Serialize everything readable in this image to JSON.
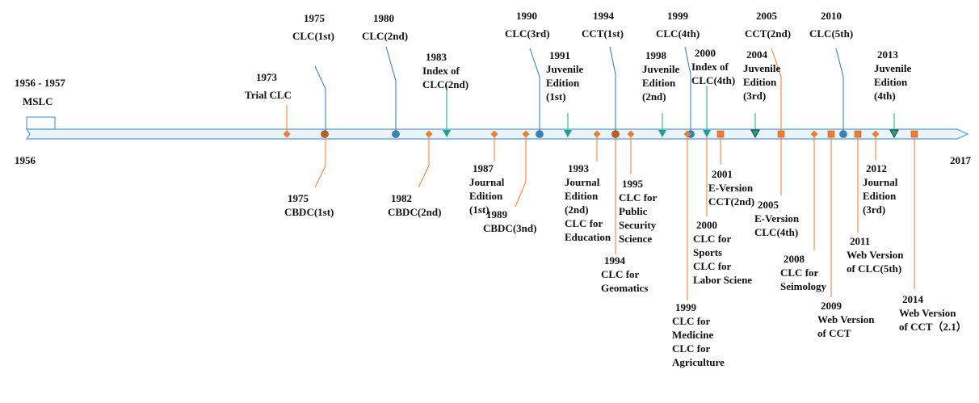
{
  "timeline": {
    "start_label": "1956",
    "end_label": "2017",
    "period_label": "1956 - 1957",
    "colors": {
      "axis": "#5b9bd5",
      "orange": "#ed7d31",
      "blue": "#2e86c1",
      "teal": "#1aa58f",
      "brown": "#c55a11",
      "line_blue": "#2e75b6"
    }
  },
  "events": [
    {
      "id": "mslc",
      "year": "",
      "lines": [
        "MSLC"
      ],
      "pos": "above",
      "marker": "box",
      "color": "axis"
    },
    {
      "id": "trial-clc",
      "year": "1973",
      "lines": [
        "Trial CLC"
      ],
      "pos": "above",
      "marker": "diamond",
      "color": "orange"
    },
    {
      "id": "clc-1st",
      "year": "1975",
      "lines": [
        "CLC(1st)"
      ],
      "pos": "above",
      "marker": "circle",
      "color": "brown"
    },
    {
      "id": "cbdc-1st",
      "year": "1975",
      "lines": [
        "CBDC(1st)"
      ],
      "pos": "below",
      "marker": "none",
      "color": "brown"
    },
    {
      "id": "clc-2nd",
      "year": "1980",
      "lines": [
        "CLC(2nd)"
      ],
      "pos": "above",
      "marker": "circle",
      "color": "blue"
    },
    {
      "id": "index-clc-2nd",
      "year": "1983",
      "lines": [
        "Index of",
        "CLC(2nd)"
      ],
      "pos": "above",
      "marker": "triangle",
      "color": "teal"
    },
    {
      "id": "cbdc-2nd",
      "year": "1982",
      "lines": [
        "CBDC(2nd)"
      ],
      "pos": "below",
      "marker": "diamond",
      "color": "orange"
    },
    {
      "id": "journal-1st",
      "year": "1987",
      "lines": [
        "Journal",
        "Edition",
        "(1st)"
      ],
      "pos": "below",
      "marker": "diamond",
      "color": "orange"
    },
    {
      "id": "cbdc-3nd",
      "year": "1989",
      "lines": [
        "CBDC(3nd)"
      ],
      "pos": "below",
      "marker": "diamond",
      "color": "orange"
    },
    {
      "id": "clc-3rd",
      "year": "1990",
      "lines": [
        "CLC(3rd)"
      ],
      "pos": "above",
      "marker": "circle",
      "color": "blue"
    },
    {
      "id": "juvenile-1st",
      "year": "1991",
      "lines": [
        "Juvenile",
        "Edition",
        "(1st)"
      ],
      "pos": "above",
      "marker": "triangle",
      "color": "teal"
    },
    {
      "id": "journal-2nd",
      "year": "1993",
      "lines": [
        "Journal",
        "Edition",
        "(2nd)",
        "CLC for",
        "Education"
      ],
      "pos": "below",
      "marker": "diamond",
      "color": "orange"
    },
    {
      "id": "cct-1st",
      "year": "1994",
      "lines": [
        "CCT(1st)"
      ],
      "pos": "above",
      "marker": "circle",
      "color": "brown"
    },
    {
      "id": "clc-geomatics",
      "year": "1994",
      "lines": [
        "CLC for",
        "Geomatics"
      ],
      "pos": "below",
      "marker": "none",
      "color": "brown"
    },
    {
      "id": "clc-public-security",
      "year": "1995",
      "lines": [
        "CLC for",
        "Public",
        "Security",
        "Science"
      ],
      "pos": "below",
      "marker": "diamond",
      "color": "orange"
    },
    {
      "id": "juvenile-2nd",
      "year": "1998",
      "lines": [
        "Juvenile",
        "Edition",
        "(2nd)"
      ],
      "pos": "above",
      "marker": "triangle",
      "color": "teal"
    },
    {
      "id": "clc-4th",
      "year": "1999",
      "lines": [
        "CLC(4th)"
      ],
      "pos": "above",
      "marker": "circle",
      "color": "blue"
    },
    {
      "id": "clc-medicine",
      "year": "1999",
      "lines": [
        "CLC for",
        "Medicine",
        "CLC for",
        "Agriculture"
      ],
      "pos": "below",
      "marker": "diamond",
      "color": "orange"
    },
    {
      "id": "index-clc-4th",
      "year": "2000",
      "lines": [
        "Index of",
        "CLC(4th)"
      ],
      "pos": "above",
      "marker": "triangle",
      "color": "teal"
    },
    {
      "id": "clc-sports",
      "year": "2000",
      "lines": [
        "CLC for",
        "Sports",
        "CLC for",
        "Labor Sciene"
      ],
      "pos": "below",
      "marker": "none",
      "color": "brown"
    },
    {
      "id": "eversion-cct-2nd",
      "year": "2001",
      "lines": [
        "E-Version",
        "CCT(2nd)"
      ],
      "pos": "below",
      "marker": "square",
      "color": "orange"
    },
    {
      "id": "juvenile-3rd",
      "year": "2004",
      "lines": [
        "Juvenile",
        "Edition",
        "(3rd)"
      ],
      "pos": "above",
      "marker": "triangle_dark",
      "color": "teal"
    },
    {
      "id": "cct-2nd",
      "year": "2005",
      "lines": [
        "CCT(2nd)"
      ],
      "pos": "above",
      "marker": "square",
      "color": "orange"
    },
    {
      "id": "eversion-clc-4th",
      "year": "2005",
      "lines": [
        "E-Version",
        "CLC(4th)"
      ],
      "pos": "below",
      "marker": "none",
      "color": "brown"
    },
    {
      "id": "clc-seimology",
      "year": "2008",
      "lines": [
        "CLC for",
        "Seimology"
      ],
      "pos": "below",
      "marker": "diamond",
      "color": "orange"
    },
    {
      "id": "web-cct",
      "year": "2009",
      "lines": [
        "Web Version",
        "of CCT"
      ],
      "pos": "below",
      "marker": "square",
      "color": "orange"
    },
    {
      "id": "clc-5th",
      "year": "2010",
      "lines": [
        "CLC(5th)"
      ],
      "pos": "above",
      "marker": "circle",
      "color": "blue"
    },
    {
      "id": "web-clc-5th",
      "year": "2011",
      "lines": [
        "Web Version",
        "of CLC(5th)"
      ],
      "pos": "below",
      "marker": "square",
      "color": "orange"
    },
    {
      "id": "journal-3rd",
      "year": "2012",
      "lines": [
        "Journal",
        "Edition",
        "(3rd)"
      ],
      "pos": "below",
      "marker": "diamond",
      "color": "orange"
    },
    {
      "id": "juvenile-4th",
      "year": "2013",
      "lines": [
        "Juvenile",
        "Edition",
        "(4th)"
      ],
      "pos": "above",
      "marker": "triangle_dark",
      "color": "teal"
    },
    {
      "id": "web-cct-2-1",
      "year": "2014",
      "lines": [
        "Web Version",
        "of CCT（2.1）"
      ],
      "pos": "below",
      "marker": "square",
      "color": "orange"
    }
  ]
}
